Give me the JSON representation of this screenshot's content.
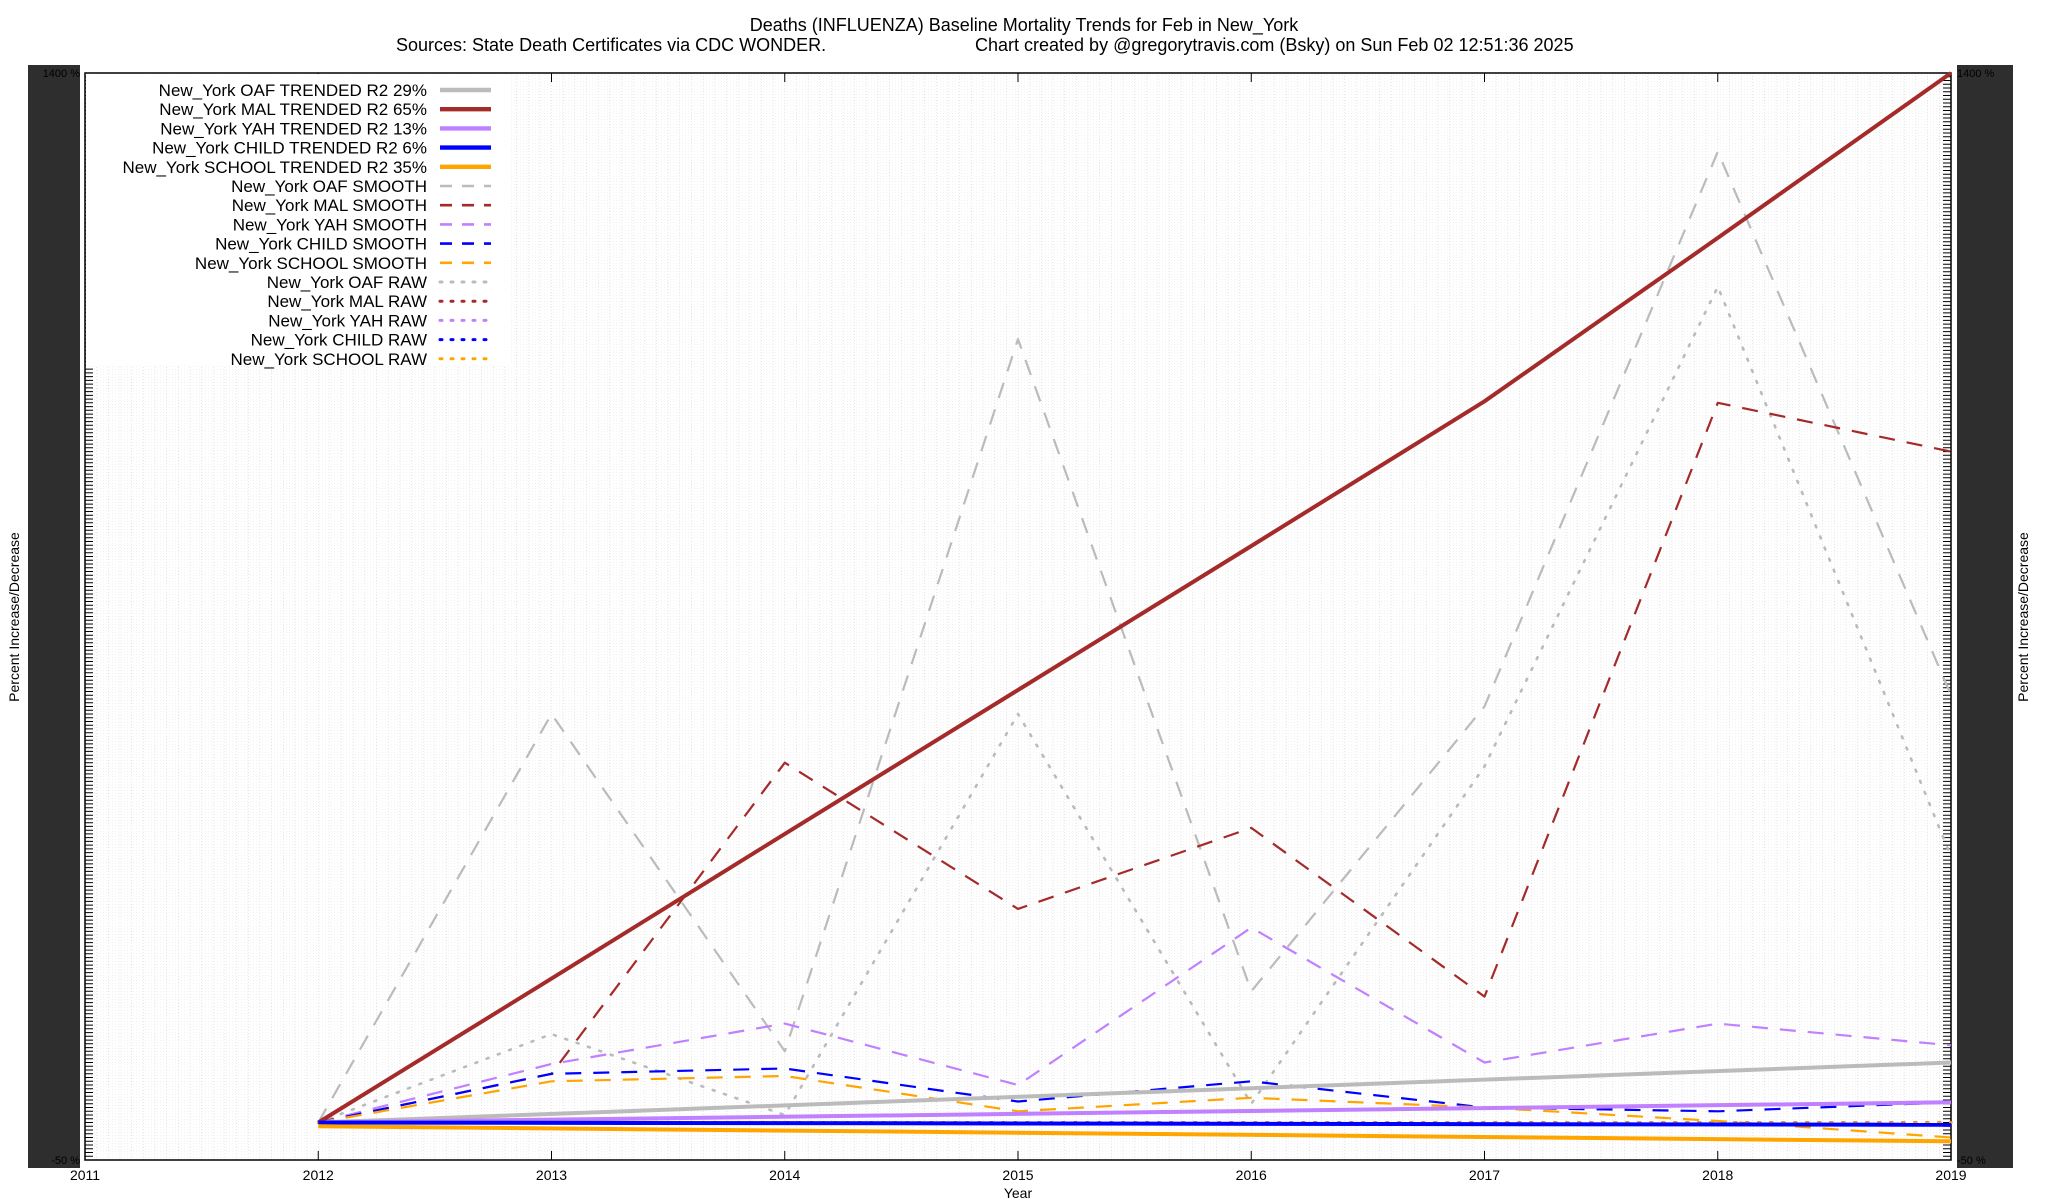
{
  "chart_data": {
    "type": "line",
    "title": "Deaths (INFLUENZA)  Baseline Mortality Trends for Feb in New_York",
    "subtitle_left": "Sources: State Death Certificates via CDC WONDER.",
    "subtitle_right": "Chart created by @gregorytravis.com (Bsky) on Sun Feb 02 12:51:36 2025",
    "xlabel": "Year",
    "ylabel_left": "Percent Increase/Decrease",
    "ylabel_right": "Percent Increase/Decrease",
    "x_ticks": [
      "2011",
      "2012",
      "2013",
      "2014",
      "2015",
      "2016",
      "2017",
      "2018",
      "2019"
    ],
    "xlim": [
      2011,
      2019
    ],
    "ylim": [
      -50,
      1400
    ],
    "ytick_visible_labels": [
      "1400 %",
      "-50 %"
    ],
    "grid": true,
    "legend_position": "top-left",
    "series": [
      {
        "name": "New_York OAF TRENDED R2  29%",
        "style": "solid",
        "color": "#bbbbbb",
        "x": [
          2012,
          2019
        ],
        "y": [
          0,
          80
        ]
      },
      {
        "name": "New_York MAL TRENDED R2  65%",
        "style": "solid",
        "color": "#a52a2a",
        "x": [
          2012,
          2013,
          2014,
          2015,
          2016,
          2017,
          2018,
          2019
        ],
        "y": [
          0,
          192,
          385,
          577,
          769,
          962,
          1180,
          1400
        ]
      },
      {
        "name": "New_York YAH TRENDED R2  13%",
        "style": "solid",
        "color": "#c080ff",
        "x": [
          2012,
          2019
        ],
        "y": [
          0,
          27
        ]
      },
      {
        "name": "New_York CHILD TRENDED R2  6%",
        "style": "solid",
        "color": "#0000ff",
        "x": [
          2012,
          2019
        ],
        "y": [
          0,
          -3
        ]
      },
      {
        "name": "New_York SCHOOL TRENDED R2  35%",
        "style": "solid",
        "color": "#ffa500",
        "x": [
          2012,
          2019
        ],
        "y": [
          -5,
          -25
        ]
      },
      {
        "name": "New_York OAF SMOOTH",
        "style": "dashed",
        "color": "#bbbbbb",
        "x": [
          2012,
          2013,
          2014,
          2015,
          2016,
          2017,
          2018,
          2019
        ],
        "y": [
          0,
          545,
          95,
          1045,
          175,
          555,
          1295,
          570
        ]
      },
      {
        "name": "New_York MAL SMOOTH",
        "style": "dashed",
        "color": "#a52a2a",
        "x": [
          2012,
          2013,
          2014,
          2015,
          2016,
          2017,
          2018,
          2019
        ],
        "y": [
          0,
          65,
          480,
          285,
          393,
          168,
          960,
          895
        ]
      },
      {
        "name": "New_York YAH SMOOTH",
        "style": "dashed",
        "color": "#c080ff",
        "x": [
          2012,
          2013,
          2014,
          2015,
          2016,
          2017,
          2018,
          2019
        ],
        "y": [
          0,
          78,
          132,
          50,
          260,
          80,
          132,
          103
        ]
      },
      {
        "name": "New_York CHILD SMOOTH",
        "style": "dashed",
        "color": "#0000ff",
        "x": [
          2012,
          2013,
          2014,
          2015,
          2016,
          2017,
          2018,
          2019
        ],
        "y": [
          0,
          65,
          72,
          28,
          55,
          20,
          15,
          27
        ]
      },
      {
        "name": "New_York SCHOOL SMOOTH",
        "style": "dashed",
        "color": "#ffa500",
        "x": [
          2012,
          2013,
          2014,
          2015,
          2016,
          2017,
          2018,
          2019
        ],
        "y": [
          0,
          55,
          62,
          15,
          33,
          20,
          2,
          -20
        ]
      },
      {
        "name": "New_York OAF RAW",
        "style": "dotted",
        "color": "#bbbbbb",
        "x": [
          2012,
          2013,
          2014,
          2015,
          2016,
          2017,
          2018,
          2019
        ],
        "y": [
          0,
          118,
          10,
          545,
          25,
          475,
          1115,
          355
        ]
      },
      {
        "name": "New_York MAL RAW",
        "style": "dotted",
        "color": "#a52a2a",
        "x": [
          2012,
          2013,
          2014,
          2015,
          2016,
          2017,
          2018,
          2019
        ],
        "y": [
          0,
          0,
          0,
          0,
          0,
          0,
          0,
          0
        ]
      },
      {
        "name": "New_York YAH RAW",
        "style": "dotted",
        "color": "#c080ff",
        "x": [
          2012,
          2013,
          2014,
          2015,
          2016,
          2017,
          2018,
          2019
        ],
        "y": [
          0,
          0,
          0,
          0,
          0,
          0,
          0,
          0
        ]
      },
      {
        "name": "New_York CHILD RAW",
        "style": "dotted",
        "color": "#0000ff",
        "x": [
          2012,
          2013,
          2014,
          2015,
          2016,
          2017,
          2018,
          2019
        ],
        "y": [
          0,
          0,
          0,
          0,
          0,
          0,
          0,
          0
        ]
      },
      {
        "name": "New_York SCHOOL RAW",
        "style": "dotted",
        "color": "#ffa500",
        "x": [
          2012,
          2013,
          2014,
          2015,
          2016,
          2017,
          2018,
          2019
        ],
        "y": [
          0,
          0,
          0,
          0,
          0,
          0,
          0,
          0
        ]
      }
    ]
  }
}
